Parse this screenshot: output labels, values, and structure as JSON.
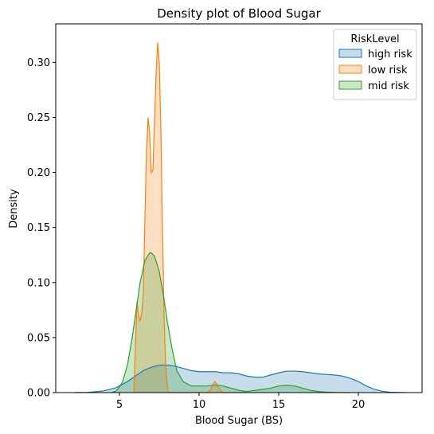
{
  "chart_data": {
    "type": "area",
    "title": "Density plot of Blood Sugar",
    "xlabel": "Blood Sugar (BS)",
    "ylabel": "Density",
    "xlim": [
      1.0,
      24.0
    ],
    "ylim": [
      0.0,
      0.335
    ],
    "xticks": [
      5,
      10,
      15,
      20
    ],
    "xtick_labels": [
      "5",
      "10",
      "15",
      "20"
    ],
    "yticks": [
      0.0,
      0.05,
      0.1,
      0.15,
      0.2,
      0.25,
      0.3
    ],
    "ytick_labels": [
      "0.00",
      "0.05",
      "0.10",
      "0.15",
      "0.20",
      "0.25",
      "0.30"
    ],
    "grid": false,
    "legend": {
      "title": "RiskLevel",
      "position": "top-right"
    },
    "series": [
      {
        "name": "high risk",
        "color": "#1f77b4",
        "x": [
          2.2,
          3.0,
          4.0,
          4.8,
          5.5,
          6.0,
          6.5,
          7.0,
          7.5,
          8.0,
          8.5,
          9.0,
          9.5,
          10.0,
          10.5,
          11.0,
          11.5,
          12.0,
          12.5,
          13.0,
          13.5,
          14.0,
          14.5,
          15.0,
          15.5,
          16.0,
          16.5,
          17.0,
          17.5,
          18.0,
          18.5,
          19.0,
          19.5,
          20.0,
          20.5,
          21.0,
          21.5,
          22.0,
          23.0
        ],
        "y": [
          0.0,
          0.0002,
          0.0015,
          0.0045,
          0.01,
          0.015,
          0.02,
          0.023,
          0.025,
          0.025,
          0.024,
          0.022,
          0.02,
          0.019,
          0.019,
          0.019,
          0.018,
          0.018,
          0.017,
          0.015,
          0.014,
          0.014,
          0.016,
          0.018,
          0.0195,
          0.0195,
          0.019,
          0.018,
          0.017,
          0.0165,
          0.016,
          0.015,
          0.013,
          0.01,
          0.006,
          0.003,
          0.0012,
          0.0004,
          0.0
        ]
      },
      {
        "name": "low risk",
        "color": "#ff7f0e",
        "x": [
          5.9,
          6.0,
          6.1,
          6.2,
          6.3,
          6.4,
          6.5,
          6.6,
          6.7,
          6.8,
          6.9,
          7.0,
          7.1,
          7.2,
          7.3,
          7.4,
          7.5,
          7.6,
          7.7,
          7.8,
          7.9,
          8.0,
          8.05,
          8.2,
          8.6,
          9.0,
          10.0,
          10.5,
          10.7,
          10.9,
          11.0,
          11.1,
          11.3,
          11.5,
          12.0,
          13.0
        ],
        "y": [
          0.0,
          0.04,
          0.083,
          0.07,
          0.065,
          0.073,
          0.09,
          0.16,
          0.22,
          0.25,
          0.235,
          0.2,
          0.202,
          0.245,
          0.29,
          0.318,
          0.3,
          0.24,
          0.15,
          0.07,
          0.025,
          0.008,
          0.0,
          0.0,
          0.0,
          0.0,
          0.0,
          0.0,
          0.002,
          0.008,
          0.01,
          0.008,
          0.003,
          0.0,
          0.0,
          0.0
        ]
      },
      {
        "name": "mid risk",
        "color": "#2ca02c",
        "x": [
          4.5,
          4.8,
          5.0,
          5.2,
          5.5,
          5.8,
          6.0,
          6.3,
          6.6,
          6.9,
          7.0,
          7.2,
          7.5,
          7.8,
          8.0,
          8.3,
          8.6,
          9.0,
          9.5,
          10.0,
          10.5,
          11.0,
          11.5,
          12.0,
          12.5,
          13.0,
          13.5,
          14.0,
          14.5,
          15.0,
          15.5,
          16.0,
          16.5,
          17.0,
          17.5,
          18.0,
          18.5,
          19.5
        ],
        "y": [
          0.0,
          0.0015,
          0.005,
          0.01,
          0.025,
          0.05,
          0.07,
          0.1,
          0.12,
          0.127,
          0.127,
          0.124,
          0.11,
          0.085,
          0.065,
          0.04,
          0.02,
          0.01,
          0.006,
          0.006,
          0.006,
          0.007,
          0.006,
          0.004,
          0.002,
          0.001,
          0.002,
          0.003,
          0.004,
          0.006,
          0.0065,
          0.006,
          0.004,
          0.002,
          0.001,
          0.0005,
          0.0002,
          0.0
        ]
      }
    ]
  }
}
